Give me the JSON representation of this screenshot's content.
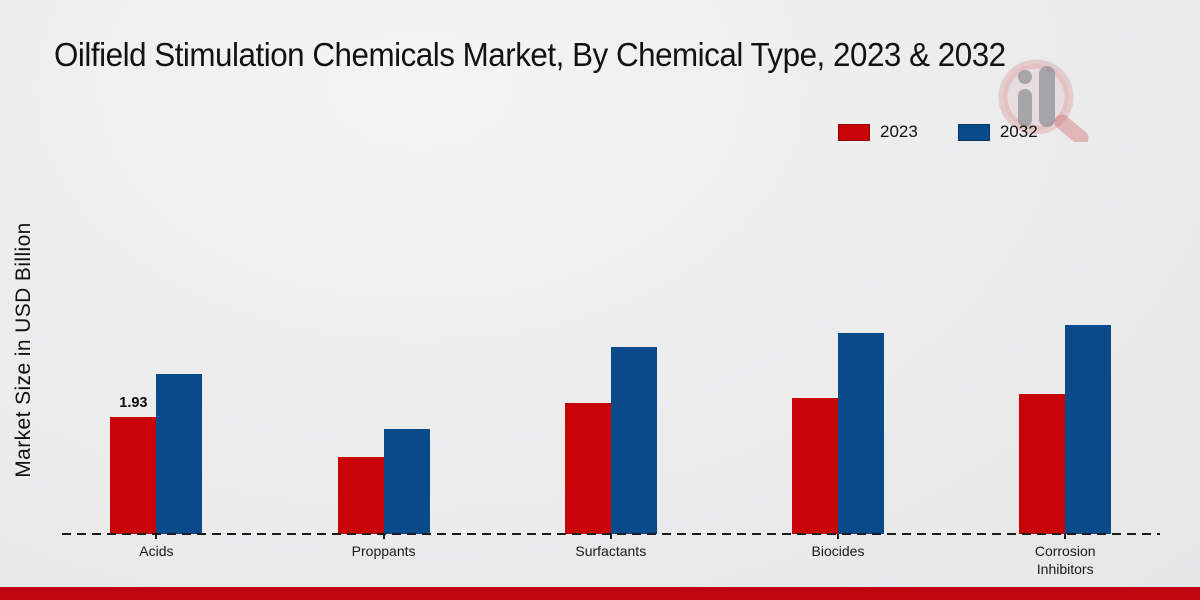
{
  "title": "Oilfield Stimulation Chemicals Market, By Chemical Type, 2023 & 2032",
  "ylabel": "Market Size in USD Billion",
  "footer_bar_color": "#c00710",
  "watermark_icon": "magnifier-bar-chart-logo",
  "chart_data": {
    "type": "bar",
    "title": "Oilfield Stimulation Chemicals Market, By Chemical Type, 2023 & 2032",
    "xlabel": "",
    "ylabel": "Market Size in USD Billion",
    "categories": [
      "Acids",
      "Proppants",
      "Surfactants",
      "Biocides",
      "Corrosion Inhibitors"
    ],
    "series": [
      {
        "name": "2023",
        "color": "#c90408",
        "values": [
          1.93,
          1.27,
          2.16,
          2.24,
          2.3
        ]
      },
      {
        "name": "2032",
        "color": "#094a8a",
        "values": [
          2.64,
          1.73,
          3.08,
          3.31,
          3.44
        ]
      }
    ],
    "ylim": [
      0,
      4
    ],
    "grid": false,
    "legend_position": "top-right",
    "baseline_style": "dashed",
    "data_labels": [
      {
        "series": "2023",
        "category": "Acids",
        "value": "1.93"
      }
    ]
  }
}
